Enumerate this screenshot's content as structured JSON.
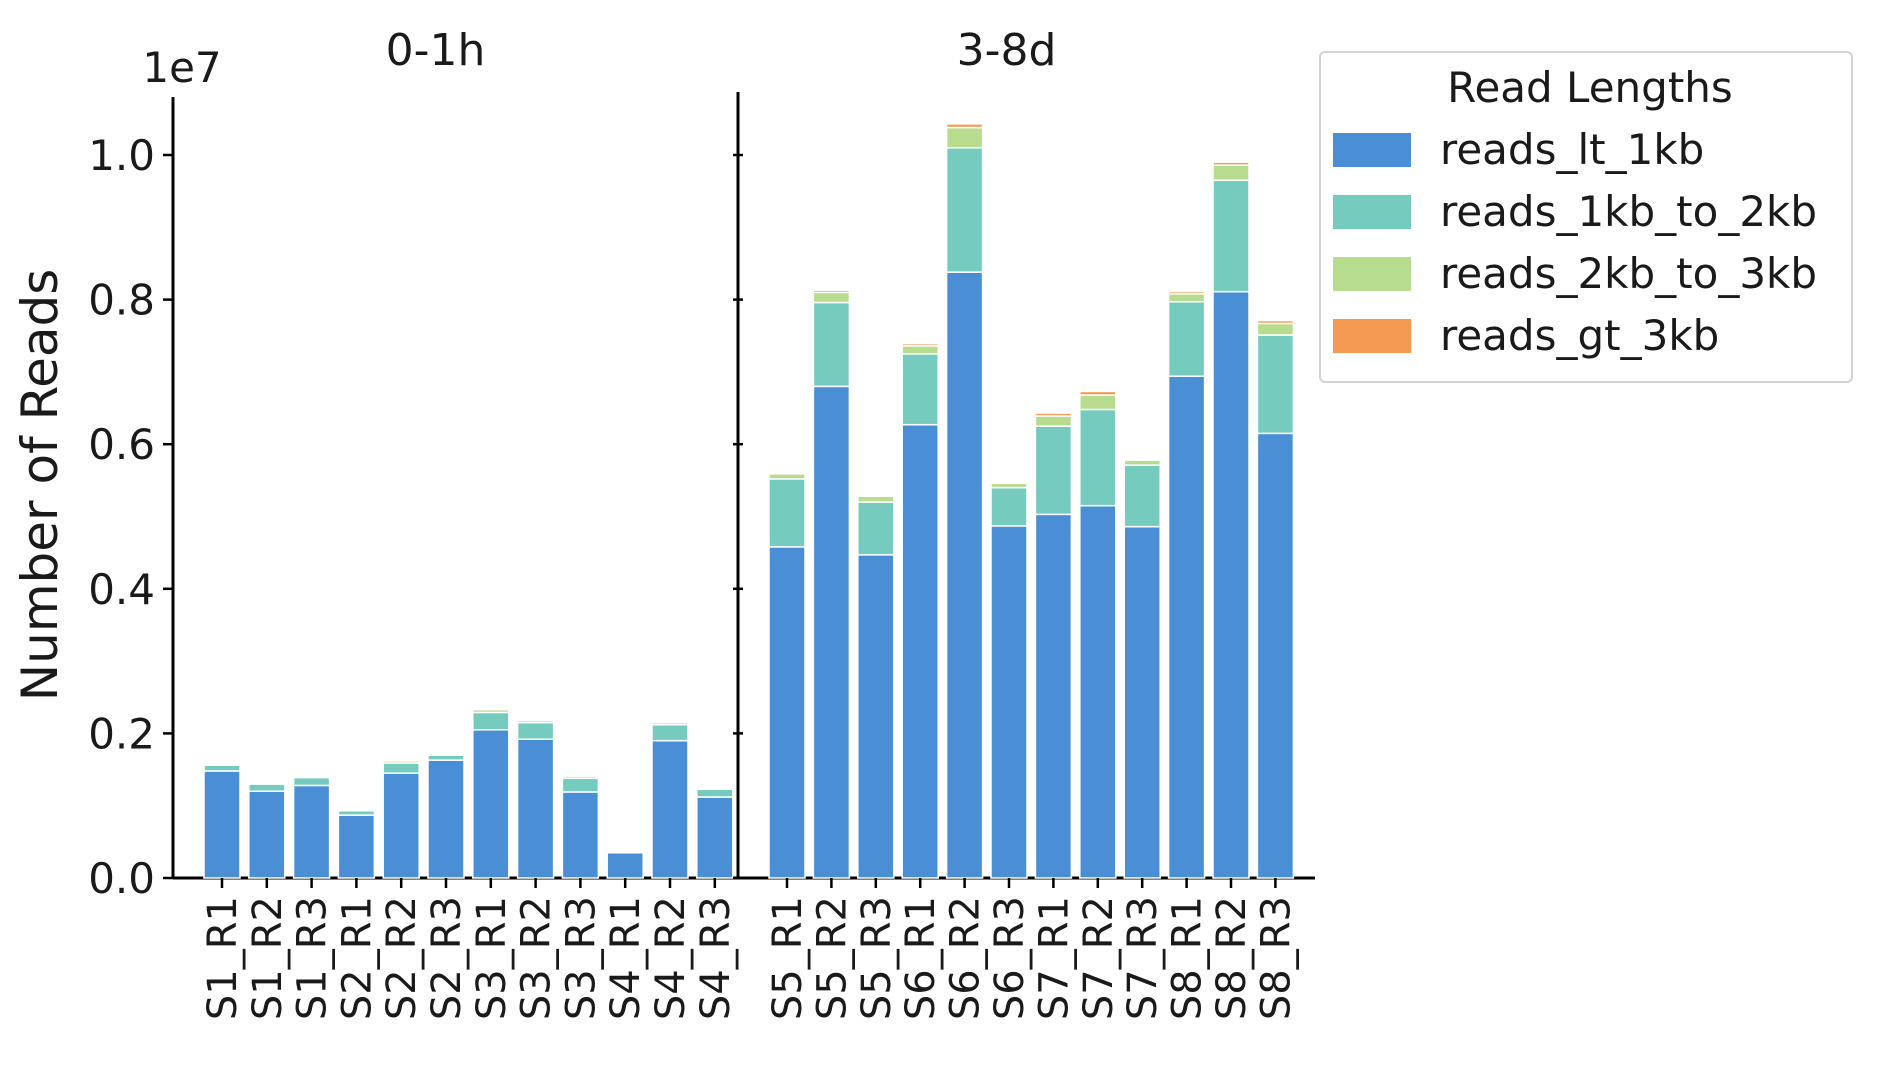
{
  "chart_data": {
    "type": "bar",
    "stacked": true,
    "ylabel": "Number of Reads",
    "y_offset_label": "1e7",
    "ylim": [
      0,
      1.08
    ],
    "yticks": [
      0.0,
      0.2,
      0.4,
      0.6,
      0.8,
      1.0
    ],
    "ytick_labels": [
      "0.0",
      "0.2",
      "0.4",
      "0.6",
      "0.8",
      "1.0"
    ],
    "grid": false,
    "legend": {
      "title": "Read Lengths",
      "placement": "outside-top-right",
      "entries": [
        "reads_lt_1kb",
        "reads_1kb_to_2kb",
        "reads_2kb_to_3kb",
        "reads_gt_3kb"
      ]
    },
    "colors": {
      "reads_lt_1kb": "#4a8fd6",
      "reads_1kb_to_2kb": "#75cbbd",
      "reads_2kb_to_3kb": "#b8dc8e",
      "reads_gt_3kb": "#f49a52"
    },
    "panels": [
      {
        "title": "0-1h",
        "categories": [
          "S1_R1",
          "S1_R2",
          "S1_R3",
          "S2_R1",
          "S2_R2",
          "S2_R3",
          "S3_R1",
          "S3_R2",
          "S3_R3",
          "S4_R1",
          "S4_R2",
          "S4_R3"
        ],
        "series": [
          {
            "name": "reads_lt_1kb",
            "values": [
              0.148,
              0.12,
              0.128,
              0.087,
              0.145,
              0.163,
              0.205,
              0.192,
              0.119,
              0.035,
              0.19,
              0.112
            ]
          },
          {
            "name": "reads_1kb_to_2kb",
            "values": [
              0.008,
              0.01,
              0.011,
              0.006,
              0.014,
              0.007,
              0.024,
              0.023,
              0.019,
              0.002,
              0.022,
              0.011
            ]
          },
          {
            "name": "reads_2kb_to_3kb",
            "values": [
              0.002,
              0.002,
              0.002,
              0.002,
              0.003,
              0.002,
              0.004,
              0.003,
              0.003,
              0.001,
              0.003,
              0.002
            ]
          },
          {
            "name": "reads_gt_3kb",
            "values": [
              0.0,
              0.0,
              0.0,
              0.0,
              0.001,
              0.0,
              0.001,
              0.001,
              0.001,
              0.0,
              0.001,
              0.0
            ]
          }
        ]
      },
      {
        "title": "3-8d",
        "categories": [
          "S5_R1",
          "S5_R2",
          "S5_R3",
          "S6_R1",
          "S6_R2",
          "S6_R3",
          "S7_R1",
          "S7_R2",
          "S7_R3",
          "S8_R1",
          "S8_R2",
          "S8_R3"
        ],
        "series": [
          {
            "name": "reads_lt_1kb",
            "values": [
              0.458,
              0.68,
              0.447,
              0.627,
              0.838,
              0.487,
              0.503,
              0.515,
              0.486,
              0.694,
              0.811,
              0.615
            ]
          },
          {
            "name": "reads_1kb_to_2kb",
            "values": [
              0.094,
              0.116,
              0.073,
              0.098,
              0.172,
              0.053,
              0.122,
              0.133,
              0.085,
              0.103,
              0.154,
              0.136
            ]
          },
          {
            "name": "reads_2kb_to_3kb",
            "values": [
              0.007,
              0.014,
              0.008,
              0.011,
              0.028,
              0.006,
              0.014,
              0.02,
              0.007,
              0.011,
              0.021,
              0.016
            ]
          },
          {
            "name": "reads_gt_3kb",
            "values": [
              0.002,
              0.003,
              0.002,
              0.003,
              0.005,
              0.002,
              0.004,
              0.005,
              0.002,
              0.003,
              0.004,
              0.004
            ]
          }
        ]
      }
    ]
  }
}
